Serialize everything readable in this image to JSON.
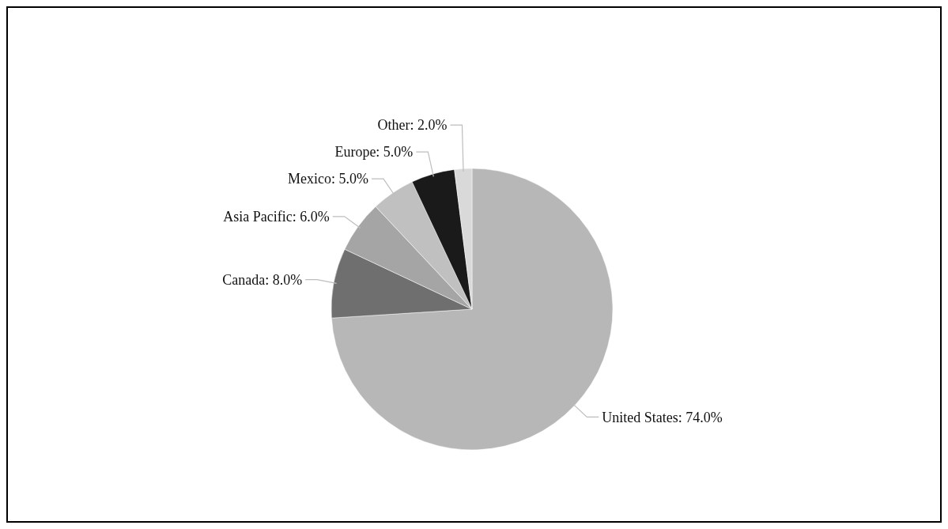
{
  "chart_data": {
    "type": "pie",
    "categories": [
      "United States",
      "Canada",
      "Asia Pacific",
      "Mexico",
      "Europe",
      "Other"
    ],
    "values": [
      74,
      8,
      6,
      5,
      5,
      2
    ],
    "value_labels": [
      "74.0%",
      "8.0%",
      "6.0%",
      "5.0%",
      "5.0%",
      "2.0%"
    ],
    "colors": [
      "#b7b7b7",
      "#6f6f6f",
      "#a5a5a5",
      "#c0c0c0",
      "#1a1a1a",
      "#d9d9d9"
    ]
  }
}
